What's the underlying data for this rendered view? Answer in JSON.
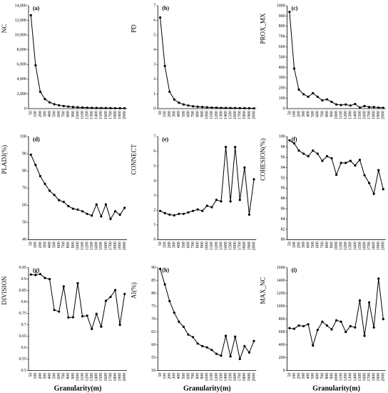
{
  "chart_data": [
    {
      "type": "line",
      "label": "(a)",
      "y_label": "NC",
      "color": "#000000",
      "categories": [
        "50",
        "100",
        "200",
        "300",
        "400",
        "500",
        "600",
        "700",
        "800",
        "900",
        "1000",
        "1100",
        "1200",
        "1300",
        "1400",
        "1500",
        "1600",
        "1700",
        "1800",
        "1900",
        "2000"
      ],
      "values": [
        12700,
        5900,
        2300,
        1300,
        850,
        600,
        450,
        350,
        280,
        220,
        180,
        150,
        120,
        100,
        90,
        80,
        70,
        60,
        55,
        50,
        45
      ],
      "ylim": [
        0,
        14000
      ],
      "yticks": [
        0,
        {
          "value": 2000,
          "label": "2,000"
        },
        {
          "value": 4000,
          "label": "4,000"
        },
        {
          "value": 6000,
          "label": "6,000"
        },
        {
          "value": 8000,
          "label": "8,000"
        },
        {
          "value": 10000,
          "label": "10,000"
        },
        {
          "value": 12000,
          "label": "12,000"
        },
        {
          "value": 14000,
          "label": "14,000"
        }
      ]
    },
    {
      "type": "line",
      "label": "(b)",
      "y_label": "PD",
      "color": "#000000",
      "categories": [
        "50",
        "100",
        "200",
        "300",
        "400",
        "500",
        "600",
        "700",
        "800",
        "900",
        "1000",
        "1100",
        "1200",
        "1300",
        "1400",
        "1500",
        "1600",
        "1700",
        "1800",
        "1900",
        "2000"
      ],
      "values": [
        6.2,
        2.9,
        1.15,
        0.62,
        0.4,
        0.28,
        0.21,
        0.16,
        0.13,
        0.11,
        0.09,
        0.07,
        0.06,
        0.05,
        0.045,
        0.04,
        0.035,
        0.03,
        0.03,
        0.025,
        0.02
      ],
      "ylim": [
        0,
        7
      ],
      "yticks": [
        0,
        1,
        2,
        3,
        4,
        5,
        6,
        7
      ]
    },
    {
      "type": "line",
      "label": "(c)",
      "y_label": "PROX_MX",
      "color": "#000000",
      "categories": [
        "50",
        "100",
        "200",
        "300",
        "400",
        "500",
        "600",
        "700",
        "800",
        "900",
        "1000",
        "1100",
        "1200",
        "1300",
        "1400",
        "1500",
        "1600",
        "1700",
        "1800",
        "1900",
        "2000"
      ],
      "values": [
        940,
        390,
        185,
        140,
        115,
        150,
        115,
        80,
        90,
        65,
        40,
        35,
        40,
        30,
        45,
        10,
        25,
        15,
        15,
        10,
        8
      ],
      "ylim": [
        0,
        1000
      ],
      "yticks": [
        0,
        100,
        200,
        300,
        400,
        500,
        600,
        700,
        800,
        900,
        1000
      ]
    },
    {
      "type": "line",
      "label": "(d)",
      "y_label": "PLADJ(%)",
      "color": "#000000",
      "categories": [
        "50",
        "100",
        "200",
        "300",
        "400",
        "500",
        "600",
        "700",
        "800",
        "900",
        "1000",
        "1100",
        "1200",
        "1300",
        "1400",
        "1500",
        "1600",
        "1700",
        "1800",
        "1900",
        "2000"
      ],
      "values": [
        89.5,
        83.5,
        77,
        72.5,
        68.5,
        66,
        63,
        62,
        59.5,
        58,
        57.5,
        56.5,
        55,
        54,
        60.5,
        53.5,
        60.5,
        52,
        56.5,
        54.5,
        58.5
      ],
      "ylim": [
        40,
        100
      ],
      "yticks": [
        40,
        50,
        60,
        70,
        80,
        90,
        100
      ]
    },
    {
      "type": "line",
      "label": "(e)",
      "y_label": "CONNECT",
      "color": "#000000",
      "categories": [
        "50",
        "100",
        "200",
        "300",
        "400",
        "500",
        "600",
        "700",
        "800",
        "900",
        "1000",
        "1100",
        "1200",
        "1300",
        "1400",
        "1500",
        "1600",
        "1700",
        "1800",
        "1900",
        "2000"
      ],
      "values": [
        1.95,
        1.8,
        1.7,
        1.65,
        1.75,
        1.75,
        1.85,
        1.95,
        2.05,
        1.95,
        2.3,
        2.2,
        2.7,
        2.6,
        6.3,
        2.6,
        6.3,
        2.7,
        4.9,
        1.7,
        4.1
      ],
      "ylim": [
        0,
        7
      ],
      "yticks": [
        0,
        1,
        2,
        3,
        4,
        5,
        6,
        7
      ]
    },
    {
      "type": "line",
      "label": "(f)",
      "y_label": "COHESION(%)",
      "color": "#000000",
      "categories": [
        "50",
        "100",
        "200",
        "300",
        "400",
        "500",
        "600",
        "700",
        "800",
        "900",
        "1000",
        "1100",
        "1200",
        "1300",
        "1400",
        "1500",
        "1600",
        "1700",
        "1800",
        "1900",
        "2000"
      ],
      "values": [
        99.3,
        98.7,
        97.3,
        96.7,
        96.2,
        97.3,
        96.7,
        95.3,
        96.2,
        95.8,
        92.6,
        94.9,
        94.9,
        95.3,
        94.4,
        95.5,
        92.5,
        91,
        88.9,
        93.5,
        89.8
      ],
      "ylim": [
        80,
        100
      ],
      "yticks": [
        80,
        82,
        84,
        86,
        88,
        90,
        92,
        94,
        96,
        98,
        100
      ]
    },
    {
      "type": "line",
      "label": "(g)",
      "y_label": "DIVISION",
      "x_label": "Granularity(m)",
      "color": "#000000",
      "categories": [
        "50",
        "100",
        "200",
        "300",
        "400",
        "500",
        "600",
        "700",
        "800",
        "900",
        "1000",
        "1100",
        "1200",
        "1300",
        "1400",
        "1500",
        "1600",
        "1700",
        "1800",
        "1900",
        "2000"
      ],
      "values": [
        0.92,
        0.918,
        0.922,
        0.905,
        0.9,
        0.765,
        0.758,
        0.868,
        0.732,
        0.733,
        0.882,
        0.737,
        0.74,
        0.682,
        0.748,
        0.692,
        0.805,
        0.822,
        0.852,
        0.7,
        0.835
      ],
      "ylim": [
        0.5,
        0.95
      ],
      "yticks": [
        0.5,
        0.55,
        0.6,
        0.65,
        0.7,
        0.75,
        0.8,
        0.85,
        0.9,
        0.95
      ]
    },
    {
      "type": "line",
      "label": "(h)",
      "y_label": "AI(%)",
      "x_label": "Granularity(m)",
      "color": "#000000",
      "categories": [
        "50",
        "100",
        "200",
        "300",
        "400",
        "500",
        "600",
        "700",
        "800",
        "900",
        "1000",
        "1100",
        "1200",
        "1300",
        "1400",
        "1500",
        "1600",
        "1700",
        "1800",
        "1900",
        "2000"
      ],
      "values": [
        89.5,
        83.5,
        77,
        72.5,
        69,
        67,
        64,
        63,
        60.5,
        59.5,
        59,
        58,
        56.5,
        55.8,
        63.5,
        55.5,
        63.2,
        54.5,
        59.5,
        57,
        61.5
      ],
      "ylim": [
        50,
        90
      ],
      "yticks": [
        50,
        55,
        60,
        65,
        70,
        75,
        80,
        85,
        90
      ]
    },
    {
      "type": "line",
      "label": "(i)",
      "y_label": "MAX_NC",
      "x_label": "Granularity(m)",
      "color": "#000000",
      "categories": [
        "50",
        "100",
        "200",
        "300",
        "400",
        "500",
        "600",
        "700",
        "800",
        "900",
        "1000",
        "1100",
        "1200",
        "1300",
        "1400",
        "1500",
        "1600",
        "1700",
        "1800",
        "1900",
        "2000"
      ],
      "values": [
        660,
        650,
        700,
        690,
        720,
        390,
        630,
        760,
        700,
        640,
        780,
        760,
        600,
        690,
        670,
        1090,
        540,
        1060,
        670,
        1430,
        800
      ],
      "ylim": [
        0,
        1600
      ],
      "yticks": [
        0,
        200,
        400,
        600,
        800,
        1000,
        1200,
        1400,
        1600
      ]
    }
  ]
}
